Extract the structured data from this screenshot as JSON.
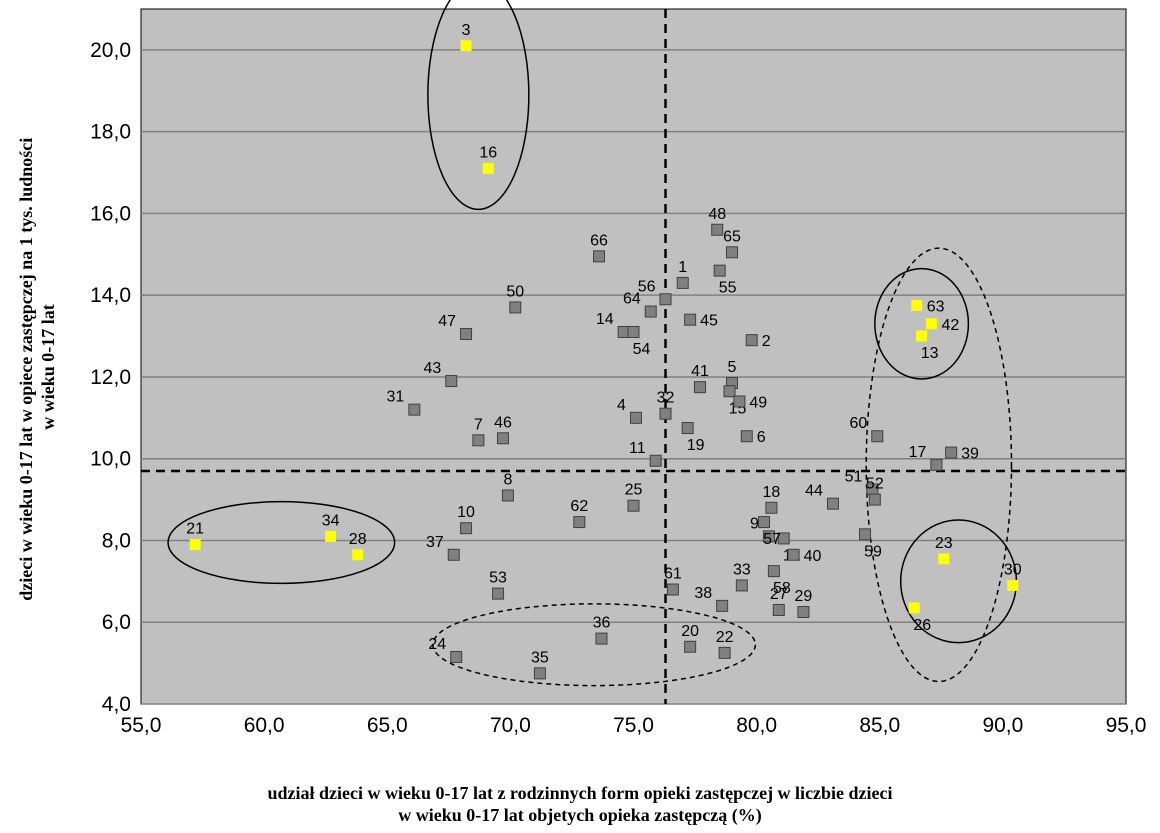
{
  "chart_data": {
    "type": "scatter",
    "xlabel": "udział dzieci w wieku 0-17 lat z rodzinnych form opieki zastępczej w liczbie dzieci w wieku 0-17 lat objętych opieką zastępczą (%)",
    "xlabel_lines": [
      "udział dzieci w wieku 0-17 lat z rodzinnych form opieki zastępczej w liczbie dzieci",
      "w wieku 0-17 lat objetych opieka zastępczą (%)"
    ],
    "ylabel": "dzieci w wieku 0-17 lat w opiece zastępczej na 1 tys. ludności w wieku 0-17 lat",
    "ylabel_lines": [
      "dzieci w wieku 0-17 lat w opiece zastępczej na 1 tys. ludności",
      "w wieku 0-17 lat"
    ],
    "xlim": [
      55,
      95
    ],
    "ylim": [
      4,
      21
    ],
    "xticks": [
      "55,0",
      "60,0",
      "65,0",
      "70,0",
      "75,0",
      "80,0",
      "85,0",
      "90,0",
      "95,0"
    ],
    "yticks": [
      "4,0",
      "6,0",
      "8,0",
      "10,0",
      "12,0",
      "14,0",
      "16,0",
      "18,0",
      "20,0"
    ],
    "grid": "horizontal",
    "colors": {
      "plot_bg": "#c0c0c0",
      "point_gray": "#808080",
      "point_highlight": "#ffff00",
      "grid": "#808080"
    },
    "reference_lines": {
      "vertical_x": 76.3,
      "horizontal_y": 9.7
    },
    "points": [
      {
        "label": "1",
        "x": 77.0,
        "y": 14.3,
        "highlight": false
      },
      {
        "label": "2",
        "x": 79.8,
        "y": 12.9,
        "highlight": false
      },
      {
        "label": "3",
        "x": 68.2,
        "y": 20.1,
        "highlight": true
      },
      {
        "label": "4",
        "x": 75.1,
        "y": 11.0,
        "highlight": false
      },
      {
        "label": "5",
        "x": 79.0,
        "y": 11.85,
        "highlight": false
      },
      {
        "label": "6",
        "x": 79.6,
        "y": 10.55,
        "highlight": false
      },
      {
        "label": "7",
        "x": 68.7,
        "y": 10.45,
        "highlight": false
      },
      {
        "label": "8",
        "x": 69.9,
        "y": 9.1,
        "highlight": false
      },
      {
        "label": "9",
        "x": 80.5,
        "y": 8.1,
        "highlight": false
      },
      {
        "label": "10",
        "x": 68.2,
        "y": 8.3,
        "highlight": false
      },
      {
        "label": "11",
        "x": 75.9,
        "y": 9.95,
        "highlight": false
      },
      {
        "label": "12",
        "x": 81.1,
        "y": 8.05,
        "highlight": false
      },
      {
        "label": "13",
        "x": 86.7,
        "y": 13.0,
        "highlight": true
      },
      {
        "label": "14",
        "x": 74.6,
        "y": 13.1,
        "highlight": false
      },
      {
        "label": "15",
        "x": 78.9,
        "y": 11.65,
        "highlight": false
      },
      {
        "label": "16",
        "x": 69.1,
        "y": 17.1,
        "highlight": true
      },
      {
        "label": "17",
        "x": 87.3,
        "y": 9.85,
        "highlight": false
      },
      {
        "label": "18",
        "x": 80.6,
        "y": 8.8,
        "highlight": false
      },
      {
        "label": "19",
        "x": 77.2,
        "y": 10.75,
        "highlight": false
      },
      {
        "label": "20",
        "x": 77.3,
        "y": 5.4,
        "highlight": false
      },
      {
        "label": "21",
        "x": 57.2,
        "y": 7.9,
        "highlight": true
      },
      {
        "label": "22",
        "x": 78.7,
        "y": 5.25,
        "highlight": false
      },
      {
        "label": "23",
        "x": 87.6,
        "y": 7.55,
        "highlight": true
      },
      {
        "label": "24",
        "x": 67.8,
        "y": 5.15,
        "highlight": false
      },
      {
        "label": "25",
        "x": 75.0,
        "y": 8.85,
        "highlight": false
      },
      {
        "label": "26",
        "x": 86.4,
        "y": 6.35,
        "highlight": true
      },
      {
        "label": "27",
        "x": 80.9,
        "y": 6.3,
        "highlight": false
      },
      {
        "label": "28",
        "x": 63.8,
        "y": 7.65,
        "highlight": true
      },
      {
        "label": "29",
        "x": 81.9,
        "y": 6.25,
        "highlight": false
      },
      {
        "label": "30",
        "x": 90.4,
        "y": 6.9,
        "highlight": true
      },
      {
        "label": "31",
        "x": 66.1,
        "y": 11.2,
        "highlight": false
      },
      {
        "label": "32",
        "x": 76.3,
        "y": 11.1,
        "highlight": false
      },
      {
        "label": "33",
        "x": 79.4,
        "y": 6.9,
        "highlight": false
      },
      {
        "label": "34",
        "x": 62.7,
        "y": 8.1,
        "highlight": true
      },
      {
        "label": "35",
        "x": 71.2,
        "y": 4.75,
        "highlight": false
      },
      {
        "label": "36",
        "x": 73.7,
        "y": 5.6,
        "highlight": false
      },
      {
        "label": "37",
        "x": 67.7,
        "y": 7.65,
        "highlight": false
      },
      {
        "label": "38",
        "x": 78.6,
        "y": 6.4,
        "highlight": false
      },
      {
        "label": "39",
        "x": 87.9,
        "y": 10.15,
        "highlight": false
      },
      {
        "label": "40",
        "x": 81.5,
        "y": 7.65,
        "highlight": false
      },
      {
        "label": "41",
        "x": 77.7,
        "y": 11.75,
        "highlight": false
      },
      {
        "label": "42",
        "x": 87.1,
        "y": 13.3,
        "highlight": true
      },
      {
        "label": "43",
        "x": 67.6,
        "y": 11.9,
        "highlight": false
      },
      {
        "label": "44",
        "x": 83.1,
        "y": 8.9,
        "highlight": false
      },
      {
        "label": "45",
        "x": 77.3,
        "y": 13.4,
        "highlight": false
      },
      {
        "label": "46",
        "x": 69.7,
        "y": 10.5,
        "highlight": false
      },
      {
        "label": "47",
        "x": 68.2,
        "y": 13.05,
        "highlight": false
      },
      {
        "label": "48",
        "x": 78.4,
        "y": 15.6,
        "highlight": false
      },
      {
        "label": "49",
        "x": 79.3,
        "y": 11.4,
        "highlight": false
      },
      {
        "label": "50",
        "x": 70.2,
        "y": 13.7,
        "highlight": false
      },
      {
        "label": "51",
        "x": 84.7,
        "y": 9.25,
        "highlight": false
      },
      {
        "label": "52",
        "x": 84.8,
        "y": 9.0,
        "highlight": false
      },
      {
        "label": "53",
        "x": 69.5,
        "y": 6.7,
        "highlight": false
      },
      {
        "label": "54",
        "x": 75.0,
        "y": 13.1,
        "highlight": false
      },
      {
        "label": "55",
        "x": 78.5,
        "y": 14.6,
        "highlight": false
      },
      {
        "label": "56",
        "x": 76.3,
        "y": 13.9,
        "highlight": false
      },
      {
        "label": "57",
        "x": 80.3,
        "y": 8.45,
        "highlight": false
      },
      {
        "label": "58",
        "x": 80.7,
        "y": 7.25,
        "highlight": false
      },
      {
        "label": "59",
        "x": 84.4,
        "y": 8.15,
        "highlight": false
      },
      {
        "label": "60",
        "x": 84.9,
        "y": 10.55,
        "highlight": false
      },
      {
        "label": "61",
        "x": 76.6,
        "y": 6.8,
        "highlight": false
      },
      {
        "label": "62",
        "x": 72.8,
        "y": 8.45,
        "highlight": false
      },
      {
        "label": "63",
        "x": 86.5,
        "y": 13.75,
        "highlight": true
      },
      {
        "label": "64",
        "x": 75.7,
        "y": 13.6,
        "highlight": false
      },
      {
        "label": "65",
        "x": 79.0,
        "y": 15.05,
        "highlight": false
      },
      {
        "label": "66",
        "x": 73.6,
        "y": 14.95,
        "highlight": false
      }
    ],
    "ellipses": [
      {
        "cx": 68.7,
        "cy": 18.9,
        "rx": 2.05,
        "ry": 2.8,
        "style": "solid"
      },
      {
        "cx": 60.7,
        "cy": 7.95,
        "rx": 4.6,
        "ry": 1.0,
        "style": "solid"
      },
      {
        "cx": 86.7,
        "cy": 13.3,
        "rx": 1.9,
        "ry": 1.35,
        "style": "solid"
      },
      {
        "cx": 88.2,
        "cy": 7.0,
        "rx": 2.35,
        "ry": 1.5,
        "style": "solid"
      },
      {
        "cx": 87.4,
        "cy": 9.85,
        "rx": 2.95,
        "ry": 5.3,
        "style": "dashed"
      },
      {
        "cx": 73.4,
        "cy": 5.45,
        "rx": 6.55,
        "ry": 1.0,
        "style": "dashed"
      }
    ]
  }
}
